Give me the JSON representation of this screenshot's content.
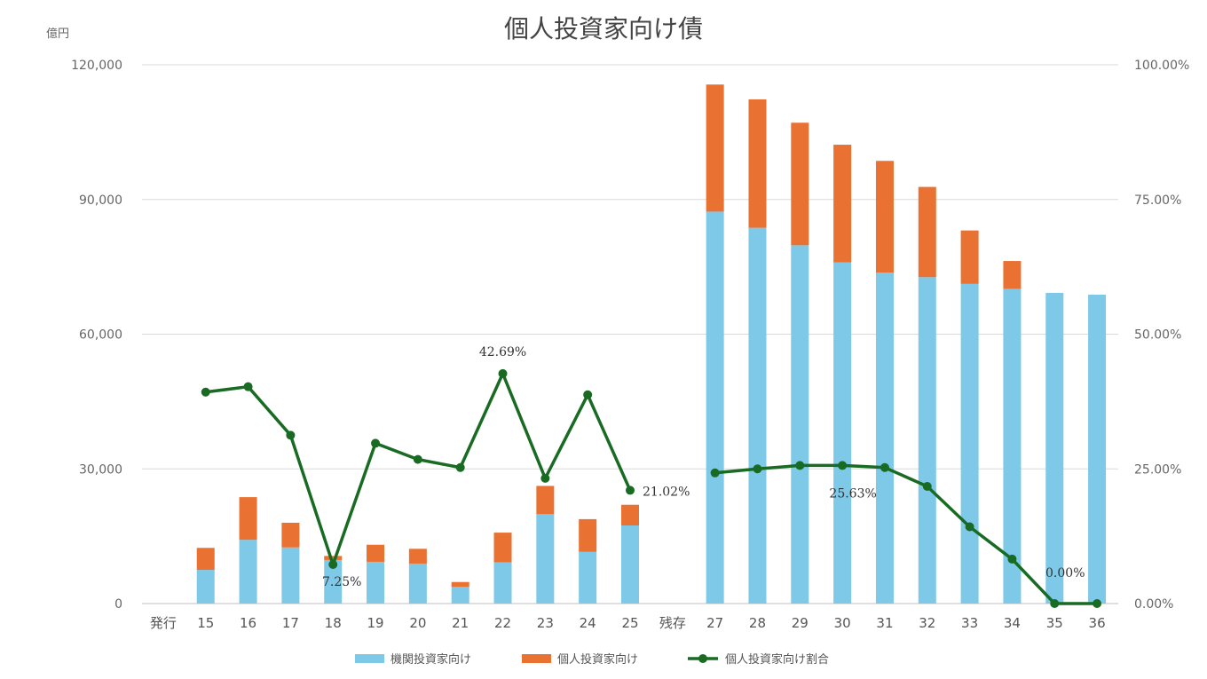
{
  "chart_data": {
    "type": "bar",
    "title": "個人投資家向け債",
    "y_unit_label": "億円",
    "ylim": [
      0,
      120000
    ],
    "y2lim": [
      0,
      1.0
    ],
    "yticks": [
      "0",
      "30,000",
      "60,000",
      "90,000",
      "120,000"
    ],
    "y2ticks": [
      "0.00%",
      "25.00%",
      "50.00%",
      "75.00%",
      "100.00%"
    ],
    "categories": [
      "発行",
      "15",
      "16",
      "17",
      "18",
      "19",
      "20",
      "21",
      "22",
      "23",
      "24",
      "25",
      "残存",
      "27",
      "28",
      "29",
      "30",
      "31",
      "32",
      "33",
      "34",
      "35",
      "36"
    ],
    "series": [
      {
        "name": "機関投資家向け",
        "kind": "bar-stack",
        "color": "#7EC8E8",
        "values": [
          null,
          7500,
          14200,
          12500,
          9700,
          9300,
          8900,
          3700,
          9200,
          19900,
          11500,
          17400,
          null,
          87300,
          83700,
          79800,
          76000,
          73700,
          72700,
          71200,
          70100,
          69200,
          68800
        ]
      },
      {
        "name": "個人投資家向け",
        "kind": "bar-stack",
        "color": "#E97132",
        "values": [
          null,
          4900,
          9500,
          5500,
          900,
          3800,
          3300,
          1100,
          6600,
          6300,
          7300,
          4600,
          null,
          28300,
          28600,
          27300,
          26200,
          24900,
          20100,
          11900,
          6200,
          0,
          0
        ]
      },
      {
        "name": "個人投資家向け割合",
        "kind": "line",
        "color": "#196B24",
        "values": [
          null,
          0.3925,
          0.4025,
          0.3125,
          0.0725,
          0.2975,
          0.2675,
          0.2525,
          0.4269,
          0.2325,
          0.3875,
          0.2102,
          null,
          0.2425,
          0.25,
          0.2563,
          0.2563,
          0.2525,
          0.2175,
          0.1425,
          0.0825,
          0.0,
          0.0
        ]
      }
    ],
    "data_labels": [
      {
        "category": "18",
        "text": "7.25%"
      },
      {
        "category": "22",
        "text": "42.69%"
      },
      {
        "category": "25",
        "text": "21.02%"
      },
      {
        "category": "30",
        "text": "25.63%"
      },
      {
        "category": "35",
        "text": "0.00%"
      }
    ],
    "legend": {
      "placement": "bottom",
      "items": [
        "機関投資家向け",
        "個人投資家向け",
        "個人投資家向け割合"
      ]
    },
    "grid": true
  }
}
